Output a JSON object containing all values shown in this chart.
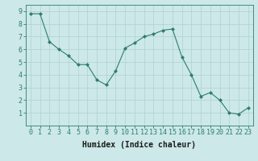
{
  "x": [
    0,
    1,
    2,
    3,
    4,
    5,
    6,
    7,
    8,
    9,
    10,
    11,
    12,
    13,
    14,
    15,
    16,
    17,
    18,
    19,
    20,
    21,
    22,
    23
  ],
  "y": [
    8.8,
    8.8,
    6.6,
    6.0,
    5.5,
    4.8,
    4.8,
    3.6,
    3.2,
    4.3,
    6.1,
    6.5,
    7.0,
    7.2,
    7.5,
    7.6,
    5.4,
    4.0,
    2.3,
    2.6,
    2.0,
    1.0,
    0.9,
    1.4
  ],
  "line_color": "#2e7d6e",
  "marker": "D",
  "marker_size": 2,
  "bg_color": "#cce8e8",
  "grid_color": "#b0d0d0",
  "xlabel": "Humidex (Indice chaleur)",
  "xlim": [
    -0.5,
    23.5
  ],
  "ylim": [
    0,
    9.5
  ],
  "yticks": [
    1,
    2,
    3,
    4,
    5,
    6,
    7,
    8,
    9
  ],
  "xticks": [
    0,
    1,
    2,
    3,
    4,
    5,
    6,
    7,
    8,
    9,
    10,
    11,
    12,
    13,
    14,
    15,
    16,
    17,
    18,
    19,
    20,
    21,
    22,
    23
  ],
  "label_fontsize": 7,
  "tick_fontsize": 6
}
